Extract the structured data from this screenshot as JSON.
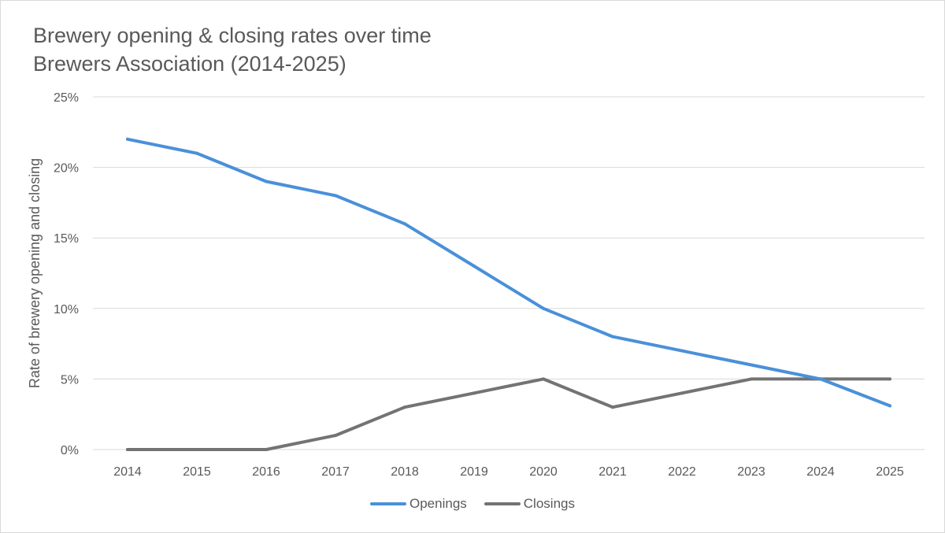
{
  "chart_data": {
    "type": "line",
    "title": "Brewery opening & closing rates over time",
    "subtitle": "Brewers Association (2014-2025)",
    "xlabel": "",
    "ylabel": "Rate of brewery opening and closing",
    "categories": [
      "2014",
      "2015",
      "2016",
      "2017",
      "2018",
      "2019",
      "2020",
      "2021",
      "2022",
      "2023",
      "2024",
      "2025"
    ],
    "y_ticks": [
      0,
      5,
      10,
      15,
      20,
      25
    ],
    "y_tick_labels": [
      "0%",
      "5%",
      "10%",
      "15%",
      "20%",
      "25%"
    ],
    "ylim": [
      0,
      25
    ],
    "grid": true,
    "legend_position": "bottom",
    "series": [
      {
        "name": "Openings",
        "color": "#4a90d9",
        "values": [
          22,
          21,
          19,
          18,
          16,
          13,
          10,
          8,
          7,
          6,
          5,
          3.1
        ]
      },
      {
        "name": "Closings",
        "color": "#737373",
        "values": [
          0,
          0,
          0,
          1,
          3,
          4,
          5,
          3,
          4,
          5,
          5,
          5
        ]
      }
    ]
  }
}
